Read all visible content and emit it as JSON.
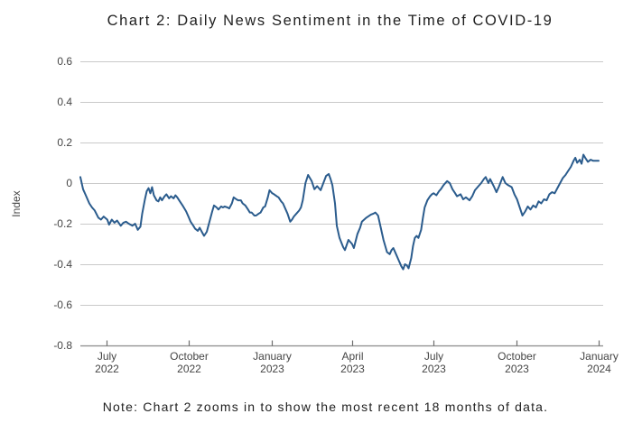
{
  "note": "Note: Chart 2 zooms in to show the most recent 18 months of data.",
  "colors": {
    "line": "#2b5c8d",
    "grid": "#c9c9c9",
    "axis": "#8a8a8a",
    "tick": "#6e6e6e",
    "tick_label": "#454545",
    "title_text": "#1f1f1f"
  },
  "chart_data": {
    "type": "line",
    "title": "Chart 2: Daily News Sentiment in the Time of COVID-19",
    "xlabel": "",
    "ylabel": "Index",
    "ylim": [
      -0.8,
      0.6
    ],
    "xlim": [
      "2022-06-02",
      "2024-01-01"
    ],
    "grid": true,
    "legend": "none",
    "yticks": [
      0.6,
      0.4,
      0.2,
      0,
      -0.2,
      -0.4,
      -0.6,
      -0.8
    ],
    "ytick_labels": [
      "0.6",
      "0.4",
      "0.2",
      "0",
      "-0.2",
      "-0.4",
      "-0.6",
      "-0.8"
    ],
    "xticks": [
      {
        "date": "2022-07-01",
        "month": "July",
        "year": "2022"
      },
      {
        "date": "2022-10-01",
        "month": "October",
        "year": "2022"
      },
      {
        "date": "2023-01-01",
        "month": "January",
        "year": "2023"
      },
      {
        "date": "2023-04-01",
        "month": "April",
        "year": "2023"
      },
      {
        "date": "2023-07-01",
        "month": "July",
        "year": "2023"
      },
      {
        "date": "2023-10-01",
        "month": "October",
        "year": "2023"
      },
      {
        "date": "2024-01-01",
        "month": "January",
        "year": "2024"
      }
    ],
    "points": [
      [
        "2022-06-02",
        0.03
      ],
      [
        "2022-06-05",
        -0.03
      ],
      [
        "2022-06-08",
        -0.06
      ],
      [
        "2022-06-12",
        -0.1
      ],
      [
        "2022-06-15",
        -0.12
      ],
      [
        "2022-06-18",
        -0.135
      ],
      [
        "2022-06-22",
        -0.17
      ],
      [
        "2022-06-25",
        -0.18
      ],
      [
        "2022-06-28",
        -0.165
      ],
      [
        "2022-07-02",
        -0.18
      ],
      [
        "2022-07-04",
        -0.205
      ],
      [
        "2022-07-07",
        -0.18
      ],
      [
        "2022-07-10",
        -0.195
      ],
      [
        "2022-07-13",
        -0.185
      ],
      [
        "2022-07-17",
        -0.21
      ],
      [
        "2022-07-20",
        -0.195
      ],
      [
        "2022-07-23",
        -0.19
      ],
      [
        "2022-07-26",
        -0.2
      ],
      [
        "2022-07-30",
        -0.21
      ],
      [
        "2022-08-02",
        -0.2
      ],
      [
        "2022-08-05",
        -0.23
      ],
      [
        "2022-08-08",
        -0.215
      ],
      [
        "2022-08-10",
        -0.15
      ],
      [
        "2022-08-13",
        -0.08
      ],
      [
        "2022-08-15",
        -0.04
      ],
      [
        "2022-08-17",
        -0.025
      ],
      [
        "2022-08-19",
        -0.05
      ],
      [
        "2022-08-21",
        -0.02
      ],
      [
        "2022-08-23",
        -0.06
      ],
      [
        "2022-08-26",
        -0.085
      ],
      [
        "2022-08-28",
        -0.09
      ],
      [
        "2022-08-30",
        -0.07
      ],
      [
        "2022-09-01",
        -0.085
      ],
      [
        "2022-09-04",
        -0.065
      ],
      [
        "2022-09-06",
        -0.055
      ],
      [
        "2022-09-09",
        -0.075
      ],
      [
        "2022-09-11",
        -0.065
      ],
      [
        "2022-09-14",
        -0.075
      ],
      [
        "2022-09-16",
        -0.06
      ],
      [
        "2022-09-18",
        -0.07
      ],
      [
        "2022-09-21",
        -0.09
      ],
      [
        "2022-09-24",
        -0.11
      ],
      [
        "2022-09-26",
        -0.125
      ],
      [
        "2022-09-28",
        -0.14
      ],
      [
        "2022-10-01",
        -0.17
      ],
      [
        "2022-10-03",
        -0.19
      ],
      [
        "2022-10-06",
        -0.21
      ],
      [
        "2022-10-08",
        -0.225
      ],
      [
        "2022-10-11",
        -0.235
      ],
      [
        "2022-10-13",
        -0.22
      ],
      [
        "2022-10-16",
        -0.245
      ],
      [
        "2022-10-18",
        -0.26
      ],
      [
        "2022-10-21",
        -0.24
      ],
      [
        "2022-10-24",
        -0.19
      ],
      [
        "2022-10-27",
        -0.14
      ],
      [
        "2022-10-29",
        -0.11
      ],
      [
        "2022-11-01",
        -0.12
      ],
      [
        "2022-11-03",
        -0.13
      ],
      [
        "2022-11-06",
        -0.115
      ],
      [
        "2022-11-08",
        -0.12
      ],
      [
        "2022-11-10",
        -0.115
      ],
      [
        "2022-11-13",
        -0.12
      ],
      [
        "2022-11-15",
        -0.125
      ],
      [
        "2022-11-18",
        -0.1
      ],
      [
        "2022-11-20",
        -0.07
      ],
      [
        "2022-11-23",
        -0.08
      ],
      [
        "2022-11-25",
        -0.085
      ],
      [
        "2022-11-28",
        -0.085
      ],
      [
        "2022-11-30",
        -0.1
      ],
      [
        "2022-12-03",
        -0.11
      ],
      [
        "2022-12-06",
        -0.13
      ],
      [
        "2022-12-08",
        -0.145
      ],
      [
        "2022-12-10",
        -0.145
      ],
      [
        "2022-12-13",
        -0.16
      ],
      [
        "2022-12-15",
        -0.16
      ],
      [
        "2022-12-18",
        -0.15
      ],
      [
        "2022-12-20",
        -0.145
      ],
      [
        "2022-12-23",
        -0.12
      ],
      [
        "2022-12-25",
        -0.115
      ],
      [
        "2022-12-28",
        -0.07
      ],
      [
        "2022-12-30",
        -0.035
      ],
      [
        "2023-01-02",
        -0.05
      ],
      [
        "2023-01-04",
        -0.055
      ],
      [
        "2023-01-07",
        -0.065
      ],
      [
        "2023-01-09",
        -0.07
      ],
      [
        "2023-01-12",
        -0.09
      ],
      [
        "2023-01-14",
        -0.1
      ],
      [
        "2023-01-17",
        -0.13
      ],
      [
        "2023-01-19",
        -0.15
      ],
      [
        "2023-01-22",
        -0.19
      ],
      [
        "2023-01-24",
        -0.18
      ],
      [
        "2023-01-26",
        -0.165
      ],
      [
        "2023-01-29",
        -0.15
      ],
      [
        "2023-02-01",
        -0.135
      ],
      [
        "2023-02-03",
        -0.12
      ],
      [
        "2023-02-05",
        -0.085
      ],
      [
        "2023-02-08",
        0
      ],
      [
        "2023-02-11",
        0.04
      ],
      [
        "2023-02-13",
        0.025
      ],
      [
        "2023-02-15",
        0.01
      ],
      [
        "2023-02-18",
        -0.03
      ],
      [
        "2023-02-21",
        -0.015
      ],
      [
        "2023-02-25",
        -0.035
      ],
      [
        "2023-02-28",
        0
      ],
      [
        "2023-03-03",
        0.035
      ],
      [
        "2023-03-06",
        0.045
      ],
      [
        "2023-03-08",
        0.02
      ],
      [
        "2023-03-10",
        -0.01
      ],
      [
        "2023-03-13",
        -0.1
      ],
      [
        "2023-03-15",
        -0.21
      ],
      [
        "2023-03-18",
        -0.27
      ],
      [
        "2023-03-22",
        -0.315
      ],
      [
        "2023-03-24",
        -0.33
      ],
      [
        "2023-03-28",
        -0.28
      ],
      [
        "2023-04-01",
        -0.3
      ],
      [
        "2023-04-03",
        -0.32
      ],
      [
        "2023-04-07",
        -0.25
      ],
      [
        "2023-04-10",
        -0.22
      ],
      [
        "2023-04-12",
        -0.19
      ],
      [
        "2023-04-17",
        -0.17
      ],
      [
        "2023-04-22",
        -0.155
      ],
      [
        "2023-04-25",
        -0.15
      ],
      [
        "2023-04-27",
        -0.145
      ],
      [
        "2023-04-30",
        -0.16
      ],
      [
        "2023-05-03",
        -0.22
      ],
      [
        "2023-05-06",
        -0.28
      ],
      [
        "2023-05-10",
        -0.34
      ],
      [
        "2023-05-13",
        -0.35
      ],
      [
        "2023-05-15",
        -0.33
      ],
      [
        "2023-05-17",
        -0.32
      ],
      [
        "2023-05-20",
        -0.35
      ],
      [
        "2023-05-23",
        -0.38
      ],
      [
        "2023-05-26",
        -0.41
      ],
      [
        "2023-05-28",
        -0.425
      ],
      [
        "2023-05-30",
        -0.4
      ],
      [
        "2023-06-01",
        -0.405
      ],
      [
        "2023-06-03",
        -0.42
      ],
      [
        "2023-06-06",
        -0.37
      ],
      [
        "2023-06-08",
        -0.31
      ],
      [
        "2023-06-10",
        -0.27
      ],
      [
        "2023-06-12",
        -0.26
      ],
      [
        "2023-06-14",
        -0.27
      ],
      [
        "2023-06-17",
        -0.23
      ],
      [
        "2023-06-19",
        -0.17
      ],
      [
        "2023-06-21",
        -0.12
      ],
      [
        "2023-06-24",
        -0.085
      ],
      [
        "2023-06-27",
        -0.065
      ],
      [
        "2023-06-29",
        -0.055
      ],
      [
        "2023-07-01",
        -0.05
      ],
      [
        "2023-07-04",
        -0.06
      ],
      [
        "2023-07-07",
        -0.04
      ],
      [
        "2023-07-09",
        -0.03
      ],
      [
        "2023-07-12",
        -0.01
      ],
      [
        "2023-07-14",
        0
      ],
      [
        "2023-07-16",
        0.01
      ],
      [
        "2023-07-19",
        0
      ],
      [
        "2023-07-22",
        -0.03
      ],
      [
        "2023-07-25",
        -0.05
      ],
      [
        "2023-07-27",
        -0.065
      ],
      [
        "2023-07-31",
        -0.055
      ],
      [
        "2023-08-03",
        -0.08
      ],
      [
        "2023-08-06",
        -0.07
      ],
      [
        "2023-08-10",
        -0.085
      ],
      [
        "2023-08-13",
        -0.065
      ],
      [
        "2023-08-16",
        -0.035
      ],
      [
        "2023-08-20",
        -0.015
      ],
      [
        "2023-08-23",
        0
      ],
      [
        "2023-08-26",
        0.02
      ],
      [
        "2023-08-28",
        0.03
      ],
      [
        "2023-08-31",
        0
      ],
      [
        "2023-09-02",
        0.02
      ],
      [
        "2023-09-06",
        -0.015
      ],
      [
        "2023-09-09",
        -0.045
      ],
      [
        "2023-09-12",
        -0.015
      ],
      [
        "2023-09-16",
        0.03
      ],
      [
        "2023-09-19",
        0
      ],
      [
        "2023-09-22",
        -0.01
      ],
      [
        "2023-09-26",
        -0.02
      ],
      [
        "2023-09-29",
        -0.055
      ],
      [
        "2023-10-02",
        -0.08
      ],
      [
        "2023-10-05",
        -0.12
      ],
      [
        "2023-10-08",
        -0.16
      ],
      [
        "2023-10-11",
        -0.14
      ],
      [
        "2023-10-14",
        -0.115
      ],
      [
        "2023-10-17",
        -0.13
      ],
      [
        "2023-10-20",
        -0.11
      ],
      [
        "2023-10-23",
        -0.12
      ],
      [
        "2023-10-26",
        -0.09
      ],
      [
        "2023-10-29",
        -0.1
      ],
      [
        "2023-11-01",
        -0.08
      ],
      [
        "2023-11-04",
        -0.085
      ],
      [
        "2023-11-07",
        -0.055
      ],
      [
        "2023-11-10",
        -0.045
      ],
      [
        "2023-11-13",
        -0.05
      ],
      [
        "2023-11-16",
        -0.025
      ],
      [
        "2023-11-19",
        0
      ],
      [
        "2023-11-22",
        0.025
      ],
      [
        "2023-11-25",
        0.04
      ],
      [
        "2023-11-28",
        0.06
      ],
      [
        "2023-12-01",
        0.08
      ],
      [
        "2023-12-04",
        0.11
      ],
      [
        "2023-12-06",
        0.125
      ],
      [
        "2023-12-08",
        0.1
      ],
      [
        "2023-12-11",
        0.115
      ],
      [
        "2023-12-13",
        0.095
      ],
      [
        "2023-12-15",
        0.14
      ],
      [
        "2023-12-17",
        0.125
      ],
      [
        "2023-12-20",
        0.105
      ],
      [
        "2023-12-23",
        0.115
      ],
      [
        "2023-12-26",
        0.11
      ],
      [
        "2024-01-01",
        0.11
      ]
    ]
  }
}
